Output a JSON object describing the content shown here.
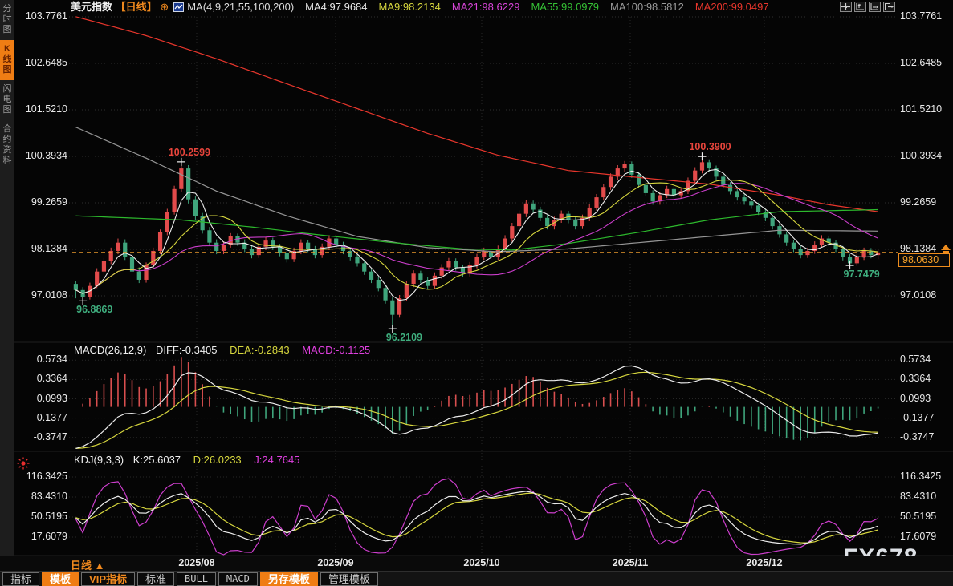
{
  "header": {
    "symbol": "美元指数",
    "period_tag": "【日线】",
    "plus_glyph": "⊕",
    "ma_label": "MA(4,9,21,55,100,200)",
    "ma_values": [
      {
        "label": "MA4:97.9684",
        "color": "#e9e9e9"
      },
      {
        "label": "MA9:98.2134",
        "color": "#d6d63e"
      },
      {
        "label": "MA21:98.6229",
        "color": "#d845d8"
      },
      {
        "label": "MA55:99.0979",
        "color": "#35c135"
      },
      {
        "label": "MA100:98.5812",
        "color": "#9a9a9a"
      },
      {
        "label": "MA200:99.0497",
        "color": "#e8362c"
      }
    ],
    "window_icons": [
      "pan",
      "fit-vertical",
      "fit-horizontal",
      "exit"
    ]
  },
  "sidebar": {
    "items": [
      {
        "label": "分时图",
        "active": false
      },
      {
        "label": "K线图",
        "active": true
      },
      {
        "label": "闪电图",
        "active": false
      },
      {
        "label": "合约资料",
        "active": false
      }
    ]
  },
  "main_chart": {
    "axis_labels": [
      "103.7761",
      "102.6485",
      "101.5210",
      "100.3934",
      "99.2659",
      "98.1384",
      "97.0108"
    ],
    "current_price": "98.0630",
    "annotations": [
      {
        "label": "100.2599",
        "color": "#e8453c",
        "index": 15,
        "value": 100.2599,
        "placement": "above"
      },
      {
        "label": "96.8869",
        "color": "#3fae7e",
        "index": 1,
        "value": 96.8869,
        "placement": "below"
      },
      {
        "label": "96.2109",
        "color": "#3fae7e",
        "index": 45,
        "value": 96.2109,
        "placement": "below"
      },
      {
        "label": "100.3900",
        "color": "#e8453c",
        "index": 89,
        "value": 100.39,
        "placement": "above"
      },
      {
        "label": "97.7479",
        "color": "#3fae7e",
        "index": 110,
        "value": 97.7479,
        "placement": "below"
      }
    ]
  },
  "macd": {
    "title": "MACD(26,12,9)",
    "diff": "DIFF:-0.3405",
    "dea": "DEA:-0.2843",
    "macd": "MACD:-0.1125",
    "axis_labels": [
      "0.5734",
      "0.3364",
      "0.0993",
      "-0.1377",
      "-0.3747"
    ]
  },
  "kdj": {
    "title": "KDJ(9,3,3)",
    "k": "K:25.6037",
    "d": "D:26.0233",
    "j": "J:24.7645",
    "axis_labels": [
      "116.3425",
      "83.4310",
      "50.5195",
      "17.6079"
    ]
  },
  "bottom": {
    "period_label": "日线",
    "period_arrow": "▲"
  },
  "dates": [
    "2025/08",
    "2025/09",
    "2025/10",
    "2025/11",
    "2025/12"
  ],
  "toolbar": {
    "items": [
      {
        "label": "指标",
        "style": "plain"
      },
      {
        "label": "模板",
        "style": "active"
      },
      {
        "label": "VIP指标",
        "style": "vip"
      },
      {
        "label": "标准",
        "style": "plain"
      },
      {
        "label": "BULL",
        "style": "mono"
      },
      {
        "label": "MACD",
        "style": "mono"
      },
      {
        "label": "另存模板",
        "style": "active"
      },
      {
        "label": "管理模板",
        "style": "plain"
      }
    ]
  },
  "watermark": "FX678",
  "chart_data": {
    "type": "candlestick",
    "title": "美元指数 日线 (US Dollar Index, daily)",
    "x_axis": {
      "tick_labels": [
        "2025/08",
        "2025/09",
        "2025/10",
        "2025/11",
        "2025/12"
      ]
    },
    "y_axis_main": [
      103.7761,
      102.6485,
      101.521,
      100.3934,
      99.2659,
      98.1384,
      97.0108
    ],
    "y_axis_macd": [
      0.5734,
      0.3364,
      0.0993,
      -0.1377,
      -0.3747
    ],
    "y_axis_kdj": [
      116.3425,
      83.431,
      50.5195,
      17.6079
    ],
    "last_close": 98.063,
    "marked_high_1": 100.2599,
    "marked_low_1": 96.8869,
    "marked_low_2": 96.2109,
    "marked_high_2": 100.39,
    "marked_low_3": 97.7479,
    "indicator_readouts": {
      "ma4": 97.9684,
      "ma9": 98.2134,
      "ma21": 98.6229,
      "ma55": 99.0979,
      "ma100": 98.5812,
      "ma200": 99.0497,
      "diff": -0.3405,
      "dea": -0.2843,
      "macd": -0.1125,
      "k": 25.6037,
      "d": 26.0233,
      "j": 24.7645
    },
    "colors": {
      "up": "#e24b4b",
      "down": "#3fa57c",
      "ma4": "#ececec",
      "ma9": "#d6d63e",
      "ma21": "#cc3ecc",
      "ma55": "#2db92d",
      "ma100": "#969696",
      "ma200": "#e8362c",
      "diff_line": "#ececec",
      "dea_line": "#d6d63e",
      "k_line": "#ececec",
      "d_line": "#d6d63e",
      "j_line": "#cc3ecc",
      "hist_up": "#d94f4f",
      "hist_down": "#3fa57c",
      "price_line": "#e8982d",
      "grid": "#2e2e2e"
    },
    "macd_seed_offset": 0.55,
    "ma55_anchors": [
      [
        0,
        98.95
      ],
      [
        15,
        98.85
      ],
      [
        25,
        98.68
      ],
      [
        35,
        98.48
      ],
      [
        45,
        98.3
      ],
      [
        55,
        98.15
      ],
      [
        62,
        98.12
      ],
      [
        70,
        98.28
      ],
      [
        80,
        98.55
      ],
      [
        90,
        98.85
      ],
      [
        100,
        99.05
      ],
      [
        114,
        99.1
      ]
    ],
    "ma100_anchors": [
      [
        0,
        101.1
      ],
      [
        10,
        100.35
      ],
      [
        20,
        99.55
      ],
      [
        30,
        98.95
      ],
      [
        40,
        98.45
      ],
      [
        50,
        98.18
      ],
      [
        60,
        98.08
      ],
      [
        70,
        98.15
      ],
      [
        80,
        98.3
      ],
      [
        90,
        98.45
      ],
      [
        100,
        98.6
      ],
      [
        114,
        98.58
      ]
    ],
    "ma200_anchors": [
      [
        0,
        103.78
      ],
      [
        10,
        103.32
      ],
      [
        20,
        102.76
      ],
      [
        30,
        102.15
      ],
      [
        40,
        101.55
      ],
      [
        50,
        100.95
      ],
      [
        60,
        100.42
      ],
      [
        70,
        100.05
      ],
      [
        80,
        99.88
      ],
      [
        90,
        99.72
      ],
      [
        100,
        99.45
      ],
      [
        107,
        99.22
      ],
      [
        114,
        99.05
      ]
    ],
    "candles": [
      [
        97.3,
        97.38,
        96.95,
        97.15
      ],
      [
        97.15,
        97.22,
        96.8869,
        96.98
      ],
      [
        96.98,
        97.33,
        96.92,
        97.25
      ],
      [
        97.25,
        97.68,
        97.2,
        97.6
      ],
      [
        97.6,
        97.93,
        97.52,
        97.85
      ],
      [
        97.85,
        98.18,
        97.78,
        98.1
      ],
      [
        98.1,
        98.4,
        98.02,
        98.3
      ],
      [
        98.3,
        98.38,
        97.88,
        97.95
      ],
      [
        97.95,
        98.02,
        97.52,
        97.6
      ],
      [
        97.6,
        97.7,
        97.32,
        97.4
      ],
      [
        97.4,
        97.82,
        97.33,
        97.75
      ],
      [
        97.75,
        98.18,
        97.68,
        98.1
      ],
      [
        98.1,
        98.62,
        98.02,
        98.55
      ],
      [
        98.55,
        99.12,
        98.48,
        99.05
      ],
      [
        99.05,
        99.68,
        98.98,
        99.6
      ],
      [
        99.6,
        100.2599,
        99.52,
        100.1
      ],
      [
        100.1,
        100.18,
        99.25,
        99.35
      ],
      [
        99.35,
        99.42,
        98.85,
        98.95
      ],
      [
        98.95,
        99.02,
        98.52,
        98.6
      ],
      [
        98.6,
        98.68,
        98.22,
        98.3
      ],
      [
        98.3,
        98.38,
        98.02,
        98.1
      ],
      [
        98.1,
        98.33,
        98.02,
        98.25
      ],
      [
        98.25,
        98.53,
        98.18,
        98.45
      ],
      [
        98.45,
        98.52,
        98.22,
        98.3
      ],
      [
        98.3,
        98.38,
        98.07,
        98.15
      ],
      [
        98.15,
        98.22,
        97.92,
        98.0
      ],
      [
        98.0,
        98.28,
        97.93,
        98.2
      ],
      [
        98.2,
        98.43,
        98.12,
        98.35
      ],
      [
        98.35,
        98.42,
        98.12,
        98.2
      ],
      [
        98.2,
        98.27,
        97.97,
        98.05
      ],
      [
        98.05,
        98.12,
        97.82,
        97.9
      ],
      [
        97.9,
        98.18,
        97.83,
        98.1
      ],
      [
        98.1,
        98.38,
        98.02,
        98.3
      ],
      [
        98.3,
        98.37,
        98.07,
        98.15
      ],
      [
        98.15,
        98.22,
        97.92,
        98.0
      ],
      [
        98.0,
        98.28,
        97.93,
        98.2
      ],
      [
        98.2,
        98.48,
        98.12,
        98.4
      ],
      [
        98.4,
        98.47,
        98.17,
        98.25
      ],
      [
        98.25,
        98.32,
        98.02,
        98.1
      ],
      [
        98.1,
        98.17,
        97.87,
        97.95
      ],
      [
        97.95,
        98.02,
        97.72,
        97.8
      ],
      [
        97.8,
        97.87,
        97.52,
        97.6
      ],
      [
        97.6,
        97.67,
        97.32,
        97.4
      ],
      [
        97.4,
        97.47,
        97.12,
        97.2
      ],
      [
        97.2,
        97.27,
        96.82,
        96.9
      ],
      [
        96.9,
        96.97,
        96.2109,
        96.55
      ],
      [
        96.55,
        97.03,
        96.48,
        96.95
      ],
      [
        96.95,
        97.38,
        96.88,
        97.3
      ],
      [
        97.3,
        97.63,
        97.22,
        97.55
      ],
      [
        97.55,
        97.62,
        97.32,
        97.4
      ],
      [
        97.4,
        97.47,
        97.17,
        97.25
      ],
      [
        97.25,
        97.58,
        97.18,
        97.5
      ],
      [
        97.5,
        97.78,
        97.42,
        97.7
      ],
      [
        97.7,
        97.93,
        97.62,
        97.85
      ],
      [
        97.85,
        97.92,
        97.62,
        97.7
      ],
      [
        97.7,
        97.77,
        97.47,
        97.55
      ],
      [
        97.55,
        97.83,
        97.48,
        97.75
      ],
      [
        97.75,
        98.03,
        97.68,
        97.95
      ],
      [
        97.95,
        98.18,
        97.88,
        98.1
      ],
      [
        98.1,
        98.17,
        97.87,
        97.95
      ],
      [
        97.95,
        98.23,
        97.88,
        98.15
      ],
      [
        98.15,
        98.48,
        98.08,
        98.4
      ],
      [
        98.4,
        98.78,
        98.32,
        98.7
      ],
      [
        98.7,
        99.08,
        98.62,
        99.0
      ],
      [
        99.0,
        99.33,
        98.92,
        99.25
      ],
      [
        99.25,
        99.32,
        99.02,
        99.1
      ],
      [
        99.1,
        99.17,
        98.82,
        98.9
      ],
      [
        98.9,
        98.97,
        98.62,
        98.7
      ],
      [
        98.7,
        98.93,
        98.62,
        98.85
      ],
      [
        98.85,
        99.08,
        98.78,
        99.0
      ],
      [
        99.0,
        99.07,
        98.77,
        98.85
      ],
      [
        98.85,
        98.92,
        98.62,
        98.7
      ],
      [
        98.7,
        98.98,
        98.63,
        98.9
      ],
      [
        98.9,
        99.23,
        98.82,
        99.15
      ],
      [
        99.15,
        99.48,
        99.08,
        99.4
      ],
      [
        99.4,
        99.73,
        99.32,
        99.65
      ],
      [
        99.65,
        99.98,
        99.58,
        99.9
      ],
      [
        99.9,
        100.18,
        99.82,
        100.1
      ],
      [
        100.1,
        100.28,
        100.02,
        100.2
      ],
      [
        100.2,
        100.27,
        99.87,
        99.95
      ],
      [
        99.95,
        100.02,
        99.62,
        99.7
      ],
      [
        99.7,
        99.77,
        99.42,
        99.5
      ],
      [
        99.5,
        99.57,
        99.22,
        99.3
      ],
      [
        99.3,
        99.53,
        99.22,
        99.45
      ],
      [
        99.45,
        99.68,
        99.38,
        99.6
      ],
      [
        99.6,
        99.67,
        99.37,
        99.45
      ],
      [
        99.45,
        99.63,
        99.38,
        99.55
      ],
      [
        99.55,
        99.88,
        99.48,
        99.8
      ],
      [
        99.8,
        100.13,
        99.72,
        100.05
      ],
      [
        100.05,
        100.39,
        99.98,
        100.25
      ],
      [
        100.25,
        100.32,
        100.02,
        100.1
      ],
      [
        100.1,
        100.17,
        99.82,
        99.9
      ],
      [
        99.9,
        99.97,
        99.62,
        99.7
      ],
      [
        99.7,
        99.77,
        99.47,
        99.55
      ],
      [
        99.55,
        99.62,
        99.32,
        99.4
      ],
      [
        99.4,
        99.47,
        99.22,
        99.3
      ],
      [
        99.3,
        99.37,
        99.12,
        99.2
      ],
      [
        99.2,
        99.27,
        98.97,
        99.05
      ],
      [
        99.05,
        99.12,
        98.82,
        98.9
      ],
      [
        98.9,
        98.97,
        98.62,
        98.7
      ],
      [
        98.7,
        98.77,
        98.42,
        98.5
      ],
      [
        98.5,
        98.57,
        98.22,
        98.3
      ],
      [
        98.3,
        98.37,
        98.07,
        98.15
      ],
      [
        98.15,
        98.22,
        97.92,
        98.0
      ],
      [
        98.0,
        98.18,
        97.93,
        98.1
      ],
      [
        98.1,
        98.33,
        98.03,
        98.25
      ],
      [
        98.25,
        98.48,
        98.18,
        98.4
      ],
      [
        98.4,
        98.47,
        98.22,
        98.3
      ],
      [
        98.3,
        98.37,
        98.07,
        98.15
      ],
      [
        98.15,
        98.22,
        97.87,
        97.95
      ],
      [
        97.95,
        98.02,
        97.7479,
        97.8
      ],
      [
        97.8,
        98.03,
        97.74,
        97.95
      ],
      [
        97.95,
        98.18,
        97.88,
        98.1
      ],
      [
        98.1,
        98.17,
        97.92,
        98.0
      ],
      [
        98.0,
        98.12,
        97.9,
        98.063
      ]
    ]
  }
}
